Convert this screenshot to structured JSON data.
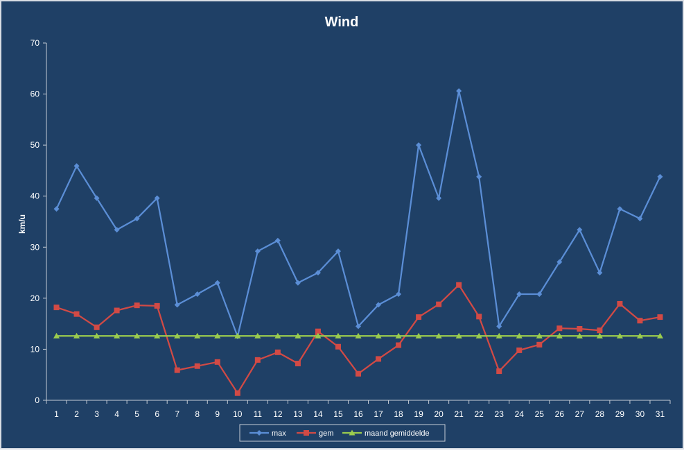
{
  "colors": {
    "background": "#1f4066",
    "frame": "#d9dde4",
    "text": "#ffffff",
    "axis": "#c6cdd6",
    "max": "#5b8ed6",
    "gem": "#d24a45",
    "maand": "#9bcc4e",
    "legend_bg": "#1f4066",
    "legend_border": "#c6cdd6"
  },
  "chart_data": {
    "type": "line",
    "title": "Wind",
    "xlabel": "",
    "ylabel": "km/u",
    "ylim": [
      0,
      70
    ],
    "yticks": [
      0,
      10,
      20,
      30,
      40,
      50,
      60,
      70
    ],
    "grid": false,
    "legend_position": "bottom",
    "categories": [
      "1",
      "2",
      "3",
      "4",
      "5",
      "6",
      "7",
      "8",
      "9",
      "10",
      "11",
      "12",
      "13",
      "14",
      "15",
      "16",
      "17",
      "18",
      "19",
      "20",
      "21",
      "22",
      "23",
      "24",
      "25",
      "26",
      "27",
      "28",
      "29",
      "30",
      "31"
    ],
    "series": [
      {
        "name": "max",
        "marker": "diamond",
        "color": "#5b8ed6",
        "values": [
          37.5,
          45.9,
          39.6,
          33.4,
          35.6,
          39.6,
          18.7,
          20.8,
          23.0,
          12.5,
          29.2,
          31.3,
          23.0,
          25.0,
          29.2,
          14.5,
          18.7,
          20.8,
          50.0,
          39.6,
          60.6,
          43.8,
          14.5,
          20.8,
          20.8,
          27.1,
          33.4,
          25.0,
          37.5,
          35.6,
          43.8
        ]
      },
      {
        "name": "gem",
        "marker": "square",
        "color": "#d24a45",
        "values": [
          18.2,
          16.9,
          14.3,
          17.6,
          18.6,
          18.5,
          5.9,
          6.7,
          7.5,
          1.4,
          7.9,
          9.4,
          7.2,
          13.5,
          10.5,
          5.2,
          8.1,
          10.8,
          16.3,
          18.8,
          22.6,
          16.4,
          5.7,
          9.8,
          10.9,
          14.1,
          14.0,
          13.7,
          18.9,
          15.6,
          16.3
        ]
      },
      {
        "name": "maand gemiddelde",
        "marker": "triangle",
        "color": "#9bcc4e",
        "values": [
          12.6,
          12.6,
          12.6,
          12.6,
          12.6,
          12.6,
          12.6,
          12.6,
          12.6,
          12.6,
          12.6,
          12.6,
          12.6,
          12.6,
          12.6,
          12.6,
          12.6,
          12.6,
          12.6,
          12.6,
          12.6,
          12.6,
          12.6,
          12.6,
          12.6,
          12.6,
          12.6,
          12.6,
          12.6,
          12.6,
          12.6
        ]
      }
    ]
  }
}
